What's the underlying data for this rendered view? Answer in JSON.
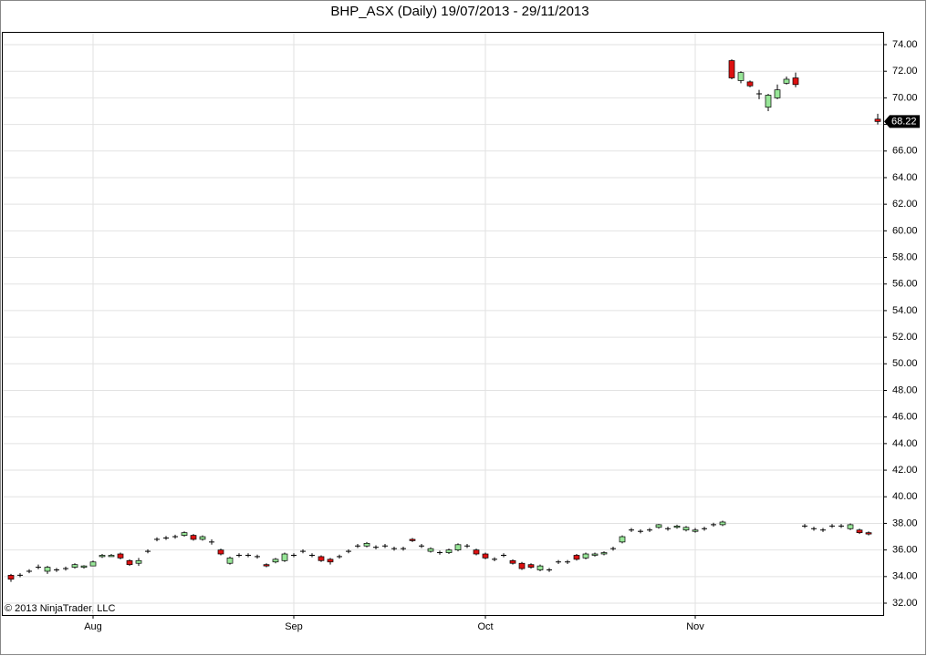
{
  "chart_data": {
    "type": "candlestick",
    "title": "BHP_ASX (Daily)  19/07/2013 - 29/11/2013",
    "copyright": "© 2013 NinjaTrader, LLC",
    "categories": [
      null,
      null,
      null,
      null,
      null,
      null,
      null,
      null,
      null,
      "Aug",
      null,
      null,
      null,
      null,
      null,
      null,
      null,
      null,
      null,
      null,
      null,
      null,
      null,
      null,
      null,
      null,
      null,
      null,
      null,
      null,
      null,
      "Sep",
      null,
      null,
      null,
      null,
      null,
      null,
      null,
      null,
      null,
      null,
      null,
      null,
      null,
      null,
      null,
      null,
      null,
      null,
      null,
      null,
      "Oct",
      null,
      null,
      null,
      null,
      null,
      null,
      null,
      null,
      null,
      null,
      null,
      null,
      null,
      null,
      null,
      null,
      null,
      null,
      null,
      null,
      null,
      null,
      "Nov",
      null,
      null,
      null,
      null,
      null,
      null,
      null,
      null,
      null,
      null,
      null,
      null,
      null,
      null,
      null,
      null,
      null,
      null,
      null,
      null
    ],
    "open": [
      34.1,
      34.1,
      34.4,
      34.7,
      34.4,
      34.5,
      34.6,
      34.7,
      34.7,
      34.8,
      35.5,
      35.5,
      35.7,
      35.2,
      35.0,
      35.9,
      36.8,
      36.9,
      37.0,
      37.1,
      37.1,
      36.8,
      36.6,
      36.0,
      35.0,
      35.6,
      35.6,
      35.5,
      34.9,
      35.1,
      35.2,
      35.6,
      35.9,
      35.6,
      35.5,
      35.3,
      35.5,
      35.9,
      36.3,
      36.3,
      36.2,
      36.3,
      36.1,
      36.1,
      36.8,
      36.3,
      35.9,
      35.8,
      35.8,
      36.0,
      36.3,
      36.0,
      35.7,
      35.3,
      35.6,
      35.2,
      35.0,
      34.9,
      34.5,
      34.5,
      35.1,
      35.1,
      35.6,
      35.4,
      35.6,
      35.7,
      36.1,
      36.6,
      37.5,
      37.4,
      37.5,
      37.7,
      37.6,
      37.7,
      37.5,
      37.4,
      37.6,
      37.9,
      37.9,
      72.8,
      71.3,
      71.2,
      70.3,
      69.3,
      70.0,
      71.1,
      71.5,
      37.8,
      37.6,
      37.5,
      37.8,
      37.8,
      37.6,
      37.5,
      37.3,
      68.4
    ],
    "high": [
      34.2,
      34.25,
      34.55,
      34.9,
      34.8,
      34.65,
      34.75,
      35.0,
      34.85,
      35.2,
      35.7,
      35.7,
      35.8,
      35.3,
      35.4,
      36.05,
      36.95,
      37.05,
      37.15,
      37.4,
      37.2,
      37.1,
      36.8,
      36.1,
      35.5,
      35.75,
      35.75,
      35.65,
      35.0,
      35.4,
      35.8,
      35.75,
      36.05,
      35.75,
      35.6,
      35.4,
      35.65,
      36.05,
      36.45,
      36.6,
      36.35,
      36.45,
      36.25,
      36.25,
      36.9,
      36.45,
      36.2,
      35.95,
      36.1,
      36.5,
      36.45,
      36.1,
      35.8,
      35.45,
      35.75,
      35.3,
      35.1,
      35.0,
      34.9,
      34.65,
      35.25,
      35.25,
      35.7,
      35.8,
      35.8,
      35.9,
      36.25,
      37.1,
      37.65,
      37.55,
      37.65,
      37.95,
      37.75,
      37.9,
      37.8,
      37.65,
      37.75,
      38.05,
      38.2,
      72.9,
      72.0,
      71.3,
      70.6,
      70.3,
      71.0,
      71.6,
      71.9,
      37.95,
      37.75,
      37.65,
      37.95,
      37.95,
      38.0,
      37.6,
      37.4,
      68.8
    ],
    "low": [
      33.6,
      33.95,
      34.25,
      34.55,
      34.2,
      34.35,
      34.45,
      34.6,
      34.6,
      34.8,
      35.4,
      35.5,
      35.3,
      34.8,
      34.8,
      35.75,
      36.65,
      36.75,
      36.85,
      37.0,
      36.7,
      36.7,
      36.4,
      35.6,
      34.9,
      35.45,
      35.45,
      35.35,
      34.7,
      35.0,
      35.1,
      35.45,
      35.75,
      35.45,
      35.1,
      34.9,
      35.35,
      35.75,
      36.15,
      36.2,
      36.05,
      36.15,
      35.95,
      35.95,
      36.6,
      36.15,
      35.8,
      35.65,
      35.7,
      35.9,
      36.15,
      35.6,
      35.3,
      35.15,
      35.45,
      34.9,
      34.5,
      34.6,
      34.4,
      34.35,
      34.95,
      34.95,
      35.2,
      35.3,
      35.5,
      35.6,
      35.95,
      36.5,
      37.35,
      37.25,
      37.35,
      37.6,
      37.45,
      37.6,
      37.4,
      37.3,
      37.45,
      37.75,
      37.8,
      71.4,
      71.1,
      70.8,
      69.9,
      69.0,
      69.9,
      71.0,
      70.8,
      37.65,
      37.45,
      37.35,
      37.65,
      37.65,
      37.5,
      37.2,
      37.1,
      68.0
    ],
    "close": [
      33.8,
      34.1,
      34.4,
      34.7,
      34.7,
      34.5,
      34.6,
      34.9,
      34.8,
      35.1,
      35.6,
      35.6,
      35.4,
      34.9,
      35.2,
      35.9,
      36.8,
      36.9,
      37.0,
      37.3,
      36.8,
      37.0,
      36.6,
      35.7,
      35.4,
      35.6,
      35.6,
      35.5,
      34.8,
      35.3,
      35.7,
      35.6,
      35.9,
      35.6,
      35.2,
      35.1,
      35.5,
      35.9,
      36.3,
      36.5,
      36.2,
      36.3,
      36.1,
      36.1,
      36.7,
      36.3,
      36.1,
      35.8,
      36.0,
      36.4,
      36.3,
      35.7,
      35.4,
      35.3,
      35.6,
      35.0,
      34.6,
      34.7,
      34.8,
      34.5,
      35.1,
      35.1,
      35.3,
      35.7,
      35.7,
      35.8,
      36.1,
      37.0,
      37.5,
      37.4,
      37.5,
      37.9,
      37.6,
      37.8,
      37.7,
      37.5,
      37.6,
      37.9,
      38.1,
      71.5,
      71.9,
      70.9,
      70.3,
      70.2,
      70.6,
      71.4,
      71.0,
      37.8,
      37.6,
      37.5,
      37.8,
      37.8,
      37.9,
      37.3,
      37.2,
      68.22
    ],
    "up_color": "#98e698",
    "down_color": "#dd1111",
    "ylim": [
      31.11,
      74.96
    ],
    "yticks": [
      {
        "value": 32,
        "label": "32.00"
      },
      {
        "value": 34,
        "label": "34.00"
      },
      {
        "value": 36,
        "label": "36.00"
      },
      {
        "value": 38,
        "label": "38.00"
      },
      {
        "value": 40,
        "label": "40.00"
      },
      {
        "value": 42,
        "label": "42.00"
      },
      {
        "value": 44,
        "label": "44.00"
      },
      {
        "value": 46,
        "label": "46.00"
      },
      {
        "value": 48,
        "label": "48.00"
      },
      {
        "value": 50,
        "label": "50.00"
      },
      {
        "value": 52,
        "label": "52.00"
      },
      {
        "value": 54,
        "label": "54.00"
      },
      {
        "value": 56,
        "label": "56.00"
      },
      {
        "value": 58,
        "label": "58.00"
      },
      {
        "value": 60,
        "label": "60.00"
      },
      {
        "value": 62,
        "label": "62.00"
      },
      {
        "value": 64,
        "label": "64.00"
      },
      {
        "value": 66,
        "label": "66.00"
      },
      {
        "value": 68,
        "label": "68.00"
      },
      {
        "value": 70,
        "label": "70.00"
      },
      {
        "value": 72,
        "label": "72.00"
      },
      {
        "value": 74,
        "label": "74.00"
      }
    ],
    "grid": true
  }
}
